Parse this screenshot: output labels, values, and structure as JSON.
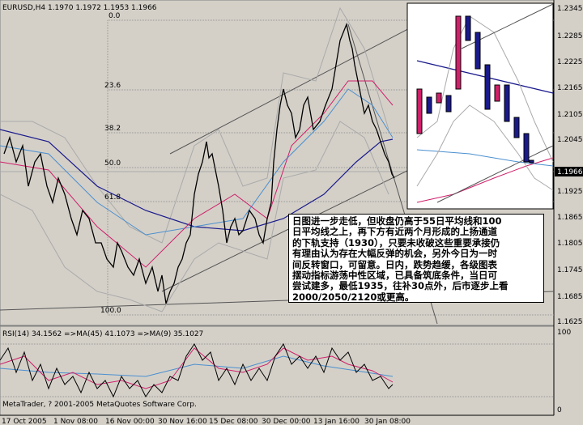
{
  "header": {
    "title": "EURUSD,H4  1.1970 1.1972 1.1953 1.1966"
  },
  "price_axis": {
    "labels": [
      "1.2345",
      "1.2285",
      "1.2225",
      "1.2165",
      "1.2105",
      "1.2045",
      "1.1966",
      "1.1925",
      "1.1865",
      "1.1805",
      "1.1745",
      "1.1685",
      "1.1625"
    ]
  },
  "fibonacci": {
    "levels": [
      "0.0",
      "23.6",
      "38.2",
      "50.0",
      "61.8",
      "100.0"
    ]
  },
  "annotation": {
    "lines": [
      "日图进一步走低，但收盘仍高于55日平均线和100",
      "日平均线之上，再下方有近两个月形成的上扬通道",
      "的下轨支持（1930），只要未收破这些重要承接仍",
      "有理由认为存在大幅反弹的机会，另外今日为一时",
      "间反转窗口，可留意。日内，跌势趋缓，各级图表",
      "摆动指标游荡中性区域，已具备筑底条件，当日可",
      "尝试建多，最低1935，往补30点外，后市逐步上看",
      "2000/2050/2120或更高。"
    ]
  },
  "rsi": {
    "title": "RSI(14) 34.1562 =>MA(45) 41.1073 =>MA(9) 35.1027",
    "axis": [
      "100",
      "0"
    ]
  },
  "footer": {
    "copyright": "MetaTrader, ? 2001-2005 MetaQuotes Software Corp."
  },
  "time_axis": {
    "labels": [
      "17 Oct 2005",
      "1 Nov 08:00",
      "16 Nov 00:00",
      "30 Nov 16:00",
      "15 Dec 08:00",
      "30 Dec 00:00",
      "13 Jan 16:00",
      "30 Jan 08:00"
    ]
  }
}
